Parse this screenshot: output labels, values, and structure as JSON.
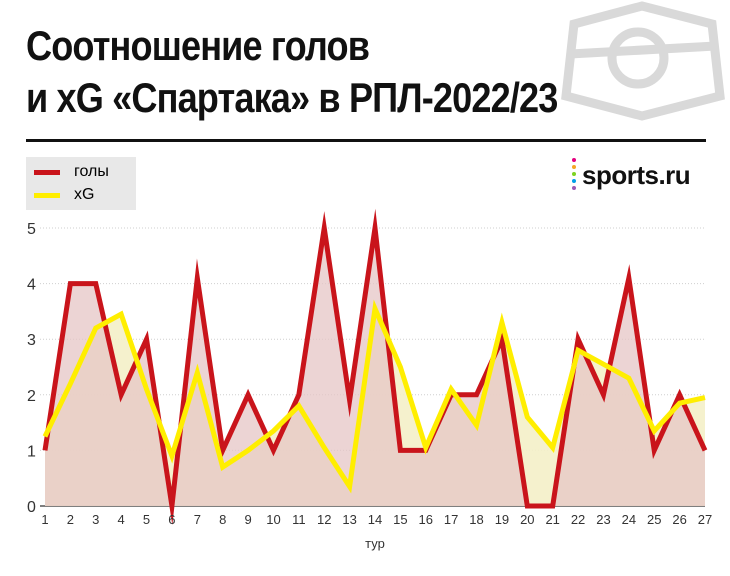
{
  "title": {
    "line1": "Соотношение голов",
    "line2": "и xG «Спартака» в РПЛ-2022/23"
  },
  "logo": {
    "text": "sports.ru",
    "dot_colors": [
      "#e4007f",
      "#f5a623",
      "#7ed321",
      "#00a0e9",
      "#9b59b6"
    ]
  },
  "emblem": {
    "icon": "spartak-emblem-icon",
    "color": "#d9d9d9"
  },
  "chart_data": {
    "type": "line",
    "x": [
      1,
      2,
      3,
      4,
      5,
      6,
      7,
      8,
      9,
      10,
      11,
      12,
      13,
      14,
      15,
      16,
      17,
      18,
      19,
      20,
      21,
      22,
      23,
      24,
      25,
      26,
      27
    ],
    "xlabel": "тур",
    "ylabel": "",
    "ylim": [
      0,
      5
    ],
    "yticks": [
      0,
      1,
      2,
      3,
      4,
      5
    ],
    "grid": true,
    "legend_position": "top-left",
    "series": [
      {
        "name": "голы",
        "color": "#c9141b",
        "fill": "#e6c6c6",
        "values": [
          1,
          4,
          4,
          2,
          3,
          0,
          4.1,
          1,
          2,
          1,
          2,
          5,
          1.9,
          5,
          1,
          1,
          2,
          2,
          3,
          0,
          0,
          3,
          2,
          4.1,
          1,
          2,
          1
        ]
      },
      {
        "name": "xG",
        "color": "#ffee00",
        "fill": "#f4efc8",
        "values": [
          1.25,
          2.2,
          3.2,
          3.45,
          2.1,
          0.9,
          2.4,
          0.7,
          1,
          1.35,
          1.8,
          1.05,
          0.35,
          3.55,
          2.5,
          1.05,
          2.1,
          1.45,
          3.3,
          1.6,
          1.05,
          2.8,
          2.55,
          2.3,
          1.35,
          1.85,
          1.95
        ]
      }
    ]
  }
}
